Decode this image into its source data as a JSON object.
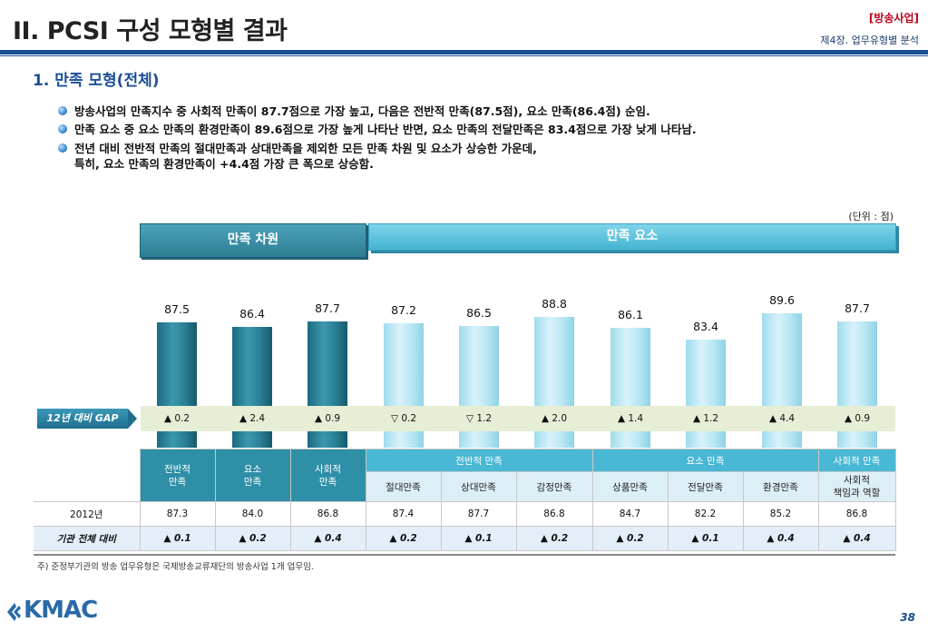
{
  "header": {
    "title": "II. PCSI 구성 모형별 결과",
    "tag": "[방송사업]",
    "chapter": "제4장. 업무유형별 분석"
  },
  "section_title": "1. 만족 모형(전체)",
  "bullets": [
    [
      "방송사업의 만족지수 중 사회적 만족이 87.7점으로 가장 높고, 다음은 전반적 만족(87.5점), 요소 만족(86.4점) 순임."
    ],
    [
      "만족 요소 중 요소 만족의 환경만족이 89.6점으로 가장 높게 나타난 반면, 요소 만족의 전달만족은 83.4점으로 가장 낮게 나타남."
    ],
    [
      "전년 대비 전반적 만족의 절대만족과 상대만족을 제외한 모든 만족 차원 및 요소가 상승한 가운데,",
      "특히, 요소 만족의 환경만족이 +4.4점 가장 큰 폭으로 상승함."
    ]
  ],
  "unit": "(단위 : 점)",
  "banners": {
    "dimension": "만족 차원",
    "element": "만족 요소"
  },
  "gap_label": "12년 대비 GAP",
  "chart_data": {
    "type": "bar",
    "categories": [
      "전반적 만족",
      "요소 만족",
      "사회적 만족",
      "절대만족",
      "상대만족",
      "감정만족",
      "상품만족",
      "전달만족",
      "환경만족",
      "사회적 책임과 역할"
    ],
    "values": [
      87.5,
      86.4,
      87.7,
      87.2,
      86.5,
      88.8,
      86.1,
      83.4,
      89.6,
      87.7
    ],
    "value_labels": [
      "87.5",
      "86.4",
      "87.7",
      "87.2",
      "86.5",
      "88.8",
      "86.1",
      "83.4",
      "89.6",
      "87.7"
    ],
    "groups": [
      "dimension",
      "dimension",
      "dimension",
      "element",
      "element",
      "element",
      "element",
      "element",
      "element",
      "element"
    ],
    "gap_labels": [
      "▲ 0.2",
      "▲ 2.4",
      "▲ 0.9",
      "▽ 0.2",
      "▽ 1.2",
      "▲ 2.0",
      "▲ 1.4",
      "▲ 1.2",
      "▲ 4.4",
      "▲ 0.9"
    ],
    "colors": {
      "dimension": "#2a7f95",
      "element": "#b8e7f4"
    }
  },
  "table": {
    "dim_headers": [
      "전반적\n만족",
      "요소\n만족",
      "사회적\n만족"
    ],
    "group_headers": [
      "전반적 만족",
      "요소 만족",
      "사회적 만족"
    ],
    "sub_headers": [
      "절대만족",
      "상대만족",
      "감정만족",
      "상품만족",
      "전달만족",
      "환경만족",
      "사회적\n책임과 역할"
    ],
    "rows": [
      {
        "label": "2012년",
        "values": [
          "87.3",
          "84.0",
          "86.8",
          "87.4",
          "87.7",
          "86.8",
          "84.7",
          "82.2",
          "85.2",
          "86.8"
        ]
      },
      {
        "label": "기관 전체 대비",
        "values": [
          "▲ 0.1",
          "▲ 0.2",
          "▲ 0.4",
          "▲ 0.2",
          "▲ 0.1",
          "▲ 0.2",
          "▲ 0.2",
          "▲ 0.1",
          "▲ 0.4",
          "▲ 0.4"
        ]
      }
    ]
  },
  "footnote": "주) 준정부기관의 방송 업무유형은 국제방송교류재단의 방송사업 1개 업무임.",
  "logo_text": "KMAC",
  "page_number": "38"
}
